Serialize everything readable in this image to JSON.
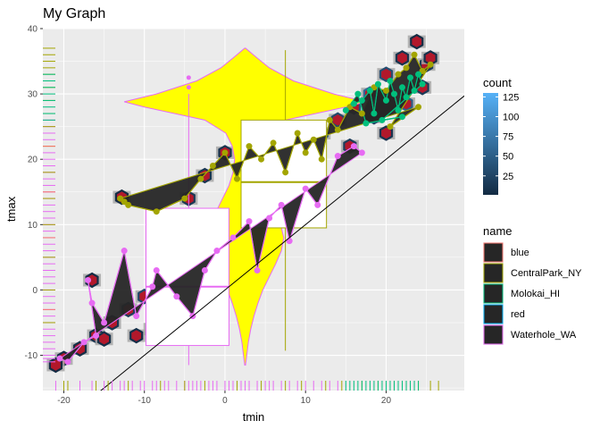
{
  "chart_data": {
    "type": "scatter",
    "title": "My Graph",
    "xlabel": "tmin",
    "ylabel": "tmax",
    "xlim": [
      -22.6,
      29.7
    ],
    "ylim": [
      -15.4,
      40.0
    ],
    "x_ticks": [
      -20,
      -10,
      0,
      10,
      20
    ],
    "y_ticks": [
      -10,
      0,
      10,
      20,
      30,
      40
    ],
    "grid": true,
    "reference_line": {
      "slope": 1,
      "intercept": 0,
      "color": "#000000"
    },
    "legend_placement": "right",
    "count_legend": {
      "title": "count",
      "ticks": [
        25,
        50,
        75,
        100,
        125
      ],
      "range": [
        1,
        130
      ],
      "low_color": "#132B43",
      "high_color": "#56B1F7"
    },
    "name_legend": {
      "title": "name",
      "entries": [
        {
          "label": "blue",
          "color": "#F8766D"
        },
        {
          "label": "CentralPark_NY",
          "color": "#A3A500"
        },
        {
          "label": "Molokai_HI",
          "color": "#00BF7D"
        },
        {
          "label": "red",
          "color": "#00B0F6"
        },
        {
          "label": "Waterhole_WA",
          "color": "#E76BF3"
        }
      ]
    },
    "violin_overlay": {
      "x_center": 2.5,
      "y_min": -11.5,
      "y_max": 37.0,
      "fill": "#FFFF00",
      "stroke": "#E76BF3"
    },
    "boxplots": [
      {
        "x": 7.5,
        "q1": 9.5,
        "median": 16.5,
        "q3": 26.0,
        "min": -9.3,
        "max": 36.7,
        "box_x": [
          2.0,
          12.6
        ],
        "stroke": "#A3A500"
      },
      {
        "x": -4.5,
        "q1": -8.5,
        "median": 0.5,
        "q3": 12.5,
        "min": -11.5,
        "max": 30.0,
        "box_x": [
          -9.8,
          0.5
        ],
        "stroke": "#E76BF3"
      }
    ],
    "outlier_points": [
      {
        "x": -4.5,
        "y": 32.5
      },
      {
        "x": -4.5,
        "y": 31.0
      }
    ],
    "series": [
      {
        "name": "Waterhole_WA",
        "points": [
          [
            -20.5,
            -10.5
          ],
          [
            -19.5,
            -11.0
          ],
          [
            -17.5,
            -8.0
          ],
          [
            -16.0,
            -7.0
          ],
          [
            -17.0,
            1.5
          ],
          [
            -16.5,
            -2.0
          ],
          [
            -15.0,
            -5.0
          ],
          [
            -12.5,
            6.0
          ],
          [
            -11.0,
            -4.0
          ],
          [
            -9.0,
            0.5
          ],
          [
            -8.5,
            3.0
          ],
          [
            -6.0,
            -1.0
          ],
          [
            -4.0,
            -4.0
          ],
          [
            -2.5,
            3.0
          ],
          [
            -1.0,
            6.0
          ],
          [
            1.0,
            8.0
          ],
          [
            3.0,
            10.5
          ],
          [
            4.0,
            3.0
          ],
          [
            5.5,
            11.0
          ],
          [
            7.0,
            13.0
          ],
          [
            8.0,
            7.5
          ],
          [
            10.0,
            15.5
          ],
          [
            11.5,
            13.0
          ],
          [
            14.0,
            20.5
          ],
          [
            16.0,
            22.0
          ],
          [
            17.0,
            21.0
          ]
        ]
      },
      {
        "name": "CentralPark_NY",
        "points": [
          [
            -13.0,
            14.0
          ],
          [
            -12.5,
            13.5
          ],
          [
            -12.0,
            13.0
          ],
          [
            -8.5,
            12.0
          ],
          [
            -5.0,
            14.0
          ],
          [
            -3.0,
            17.0
          ],
          [
            -1.5,
            19.0
          ],
          [
            0.0,
            21.0
          ],
          [
            1.5,
            17.0
          ],
          [
            3.0,
            22.0
          ],
          [
            4.5,
            20.0
          ],
          [
            6.0,
            22.5
          ],
          [
            7.5,
            18.0
          ],
          [
            9.0,
            24.0
          ],
          [
            10.0,
            21.0
          ],
          [
            11.0,
            23.0
          ],
          [
            12.0,
            20.0
          ],
          [
            13.0,
            26.0
          ],
          [
            14.0,
            24.5
          ],
          [
            15.5,
            28.0
          ],
          [
            17.0,
            27.0
          ],
          [
            18.5,
            31.0
          ],
          [
            20.0,
            30.5
          ],
          [
            21.5,
            33.0
          ],
          [
            22.5,
            34.0
          ],
          [
            23.5,
            36.0
          ],
          [
            24.5,
            33.5
          ],
          [
            25.5,
            34.5
          ],
          [
            20.5,
            25.0
          ],
          [
            24.0,
            28.0
          ]
        ]
      },
      {
        "name": "Molokai_HI",
        "points": [
          [
            15.0,
            27.5
          ],
          [
            16.0,
            28.5
          ],
          [
            17.0,
            29.0
          ],
          [
            18.0,
            30.5
          ],
          [
            18.5,
            27.0
          ],
          [
            19.0,
            31.5
          ],
          [
            20.0,
            29.0
          ],
          [
            20.5,
            32.0
          ],
          [
            21.0,
            30.0
          ],
          [
            21.5,
            27.5
          ],
          [
            22.0,
            31.0
          ],
          [
            22.5,
            29.5
          ],
          [
            23.0,
            32.5
          ],
          [
            23.5,
            30.5
          ],
          [
            24.0,
            33.0
          ],
          [
            24.5,
            31.5
          ],
          [
            19.5,
            26.0
          ],
          [
            22.0,
            26.5
          ],
          [
            17.5,
            25.5
          ],
          [
            16.5,
            30.0
          ]
        ]
      }
    ],
    "hex_cells": [
      {
        "x": 23.8,
        "y": 38.0,
        "count": 2
      },
      {
        "x": 25.0,
        "y": 34.5,
        "count": 18
      },
      {
        "x": 22.0,
        "y": 35.5,
        "count": 9
      },
      {
        "x": 20.0,
        "y": 33.0,
        "count": 35
      },
      {
        "x": 18.0,
        "y": 30.0,
        "count": 60
      },
      {
        "x": 16.0,
        "y": 28.0,
        "count": 40
      },
      {
        "x": 14.0,
        "y": 26.0,
        "count": 30
      },
      {
        "x": 12.0,
        "y": 24.0,
        "count": 45
      },
      {
        "x": 10.0,
        "y": 22.0,
        "count": 55
      },
      {
        "x": 8.0,
        "y": 19.5,
        "count": 70
      },
      {
        "x": 6.0,
        "y": 17.0,
        "count": 90
      },
      {
        "x": 4.0,
        "y": 15.0,
        "count": 110
      },
      {
        "x": 2.0,
        "y": 12.5,
        "count": 125
      },
      {
        "x": 0.0,
        "y": 10.0,
        "count": 100
      },
      {
        "x": -2.0,
        "y": 7.5,
        "count": 80
      },
      {
        "x": -4.0,
        "y": 5.0,
        "count": 65
      },
      {
        "x": -6.0,
        "y": 3.0,
        "count": 50
      },
      {
        "x": -8.0,
        "y": 1.0,
        "count": 40
      },
      {
        "x": -10.0,
        "y": -1.0,
        "count": 30
      },
      {
        "x": -12.0,
        "y": -3.0,
        "count": 20
      },
      {
        "x": -14.0,
        "y": -5.0,
        "count": 12
      },
      {
        "x": -16.0,
        "y": -7.0,
        "count": 8
      },
      {
        "x": -18.0,
        "y": -9.0,
        "count": 4
      },
      {
        "x": -20.0,
        "y": -10.5,
        "count": 2
      },
      {
        "x": -21.0,
        "y": -11.5,
        "count": 1
      },
      {
        "x": -16.5,
        "y": 1.5,
        "count": 3
      },
      {
        "x": -12.8,
        "y": 14.2,
        "count": 2
      },
      {
        "x": -4.5,
        "y": 14.0,
        "count": 15
      },
      {
        "x": -2.5,
        "y": 17.5,
        "count": 12
      },
      {
        "x": 0.0,
        "y": 21.0,
        "count": 10
      },
      {
        "x": 3.0,
        "y": 22.0,
        "count": 14
      },
      {
        "x": 7.5,
        "y": 18.0,
        "count": 22
      },
      {
        "x": 20.0,
        "y": 24.0,
        "count": 10
      },
      {
        "x": 22.5,
        "y": 28.5,
        "count": 50
      },
      {
        "x": 18.5,
        "y": 26.5,
        "count": 28
      },
      {
        "x": 15.5,
        "y": 22.0,
        "count": 18
      },
      {
        "x": -9.0,
        "y": -6.0,
        "count": 9
      },
      {
        "x": -6.0,
        "y": -5.5,
        "count": 6
      },
      {
        "x": -3.0,
        "y": -2.0,
        "count": 16
      },
      {
        "x": 5.0,
        "y": 5.0,
        "count": 24
      },
      {
        "x": 11.0,
        "y": 12.5,
        "count": 38
      },
      {
        "x": -11.0,
        "y": -7.0,
        "count": 5
      },
      {
        "x": -15.0,
        "y": -7.5,
        "count": 4
      },
      {
        "x": 24.5,
        "y": 31.0,
        "count": 16
      },
      {
        "x": 25.5,
        "y": 35.5,
        "count": 7
      }
    ],
    "rug_x": {
      "Waterhole_WA": [
        -21,
        -18,
        -16.5,
        -15,
        -14,
        -13,
        -12.5,
        -11.5,
        -10.5,
        -10,
        -9,
        -8.5,
        -7.5,
        -7,
        -6,
        -5,
        -4.5,
        -4,
        -3.5,
        -3,
        -2,
        -1.5,
        -1,
        0,
        0.5,
        1,
        2,
        2.5,
        3,
        4,
        5,
        5.5,
        6,
        7,
        8,
        9,
        10,
        11,
        12,
        13,
        14
      ],
      "CentralPark_NY": [
        -20,
        -19.5,
        -16,
        -14.5,
        -12,
        -8,
        -5,
        -2.5,
        1.5,
        4.5,
        7.5,
        9.5,
        12.5,
        14.5,
        17,
        19,
        21,
        22.5,
        24,
        25.5,
        26.5
      ],
      "Molokai_HI": [
        15,
        15.5,
        16,
        16.5,
        17,
        17.5,
        18,
        18.5,
        19,
        19.5,
        20,
        20.5,
        21,
        21.5,
        22,
        22.5,
        23,
        23.5,
        24
      ]
    },
    "rug_y": {
      "Waterhole_WA": [
        -11,
        -10.5,
        -10,
        -9,
        -8,
        -7,
        -6,
        -5,
        -4,
        -3,
        -2,
        -1,
        0,
        1,
        2,
        3,
        4,
        5,
        6,
        7,
        8,
        9,
        10,
        11,
        12,
        13,
        14,
        15,
        16,
        17,
        18,
        19,
        20,
        21,
        22,
        23,
        24,
        25,
        26
      ],
      "CentralPark_NY": [
        -5,
        0,
        5,
        10,
        14,
        18,
        22,
        25,
        27,
        29,
        31,
        33,
        34,
        35,
        36,
        37
      ],
      "Molokai_HI": [
        26,
        27,
        28,
        29,
        30,
        31,
        32,
        33
      ],
      "blue": [
        -3,
        8,
        15,
        22
      ]
    }
  }
}
